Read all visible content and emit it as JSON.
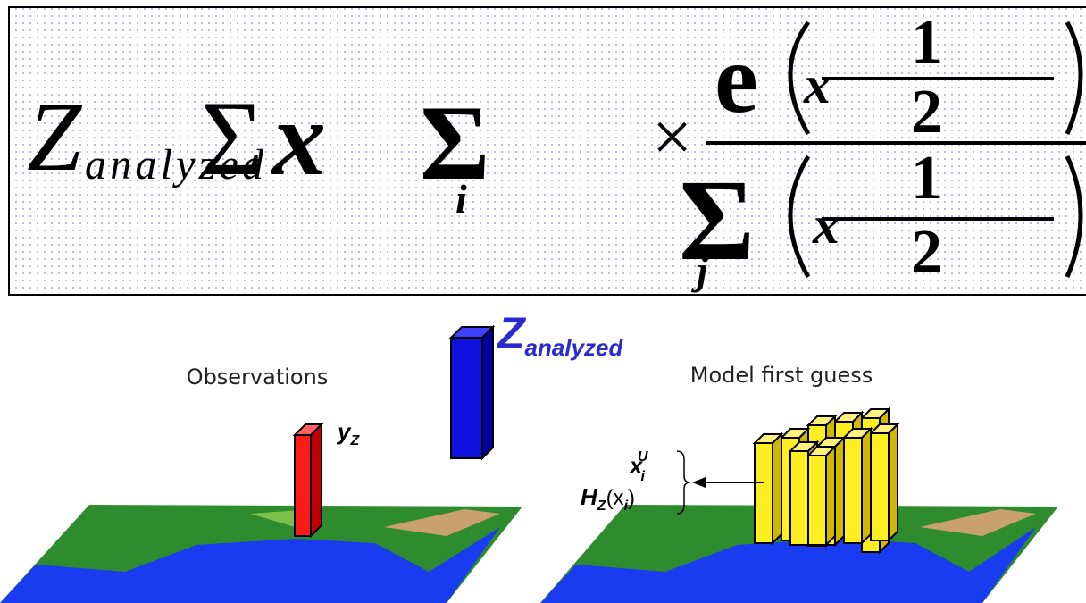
{
  "formula": {
    "lhs": "Z",
    "lhs_subscript": "analyzed",
    "sum_symbol": "Σ",
    "sum_index_numerator": "i",
    "times": "×",
    "exp": "e",
    "fraction_one": "1",
    "fraction_two": "2",
    "variable": "x",
    "sum_index_denominator": "j"
  },
  "analysis_label": {
    "symbol": "Z",
    "subscript": "analyzed"
  },
  "panels": [
    {
      "title": "Observations",
      "bar_label": {
        "symbol": "y",
        "subscript": "Z"
      }
    },
    {
      "title": "Model first guess",
      "bar_labels": [
        {
          "symbol": "x",
          "subscript": "i",
          "superscript": "U"
        },
        {
          "symbol": "H",
          "subscript": "Z",
          "argument": "(x",
          "argument_subscript": "i",
          "close": ")"
        }
      ]
    }
  ]
}
